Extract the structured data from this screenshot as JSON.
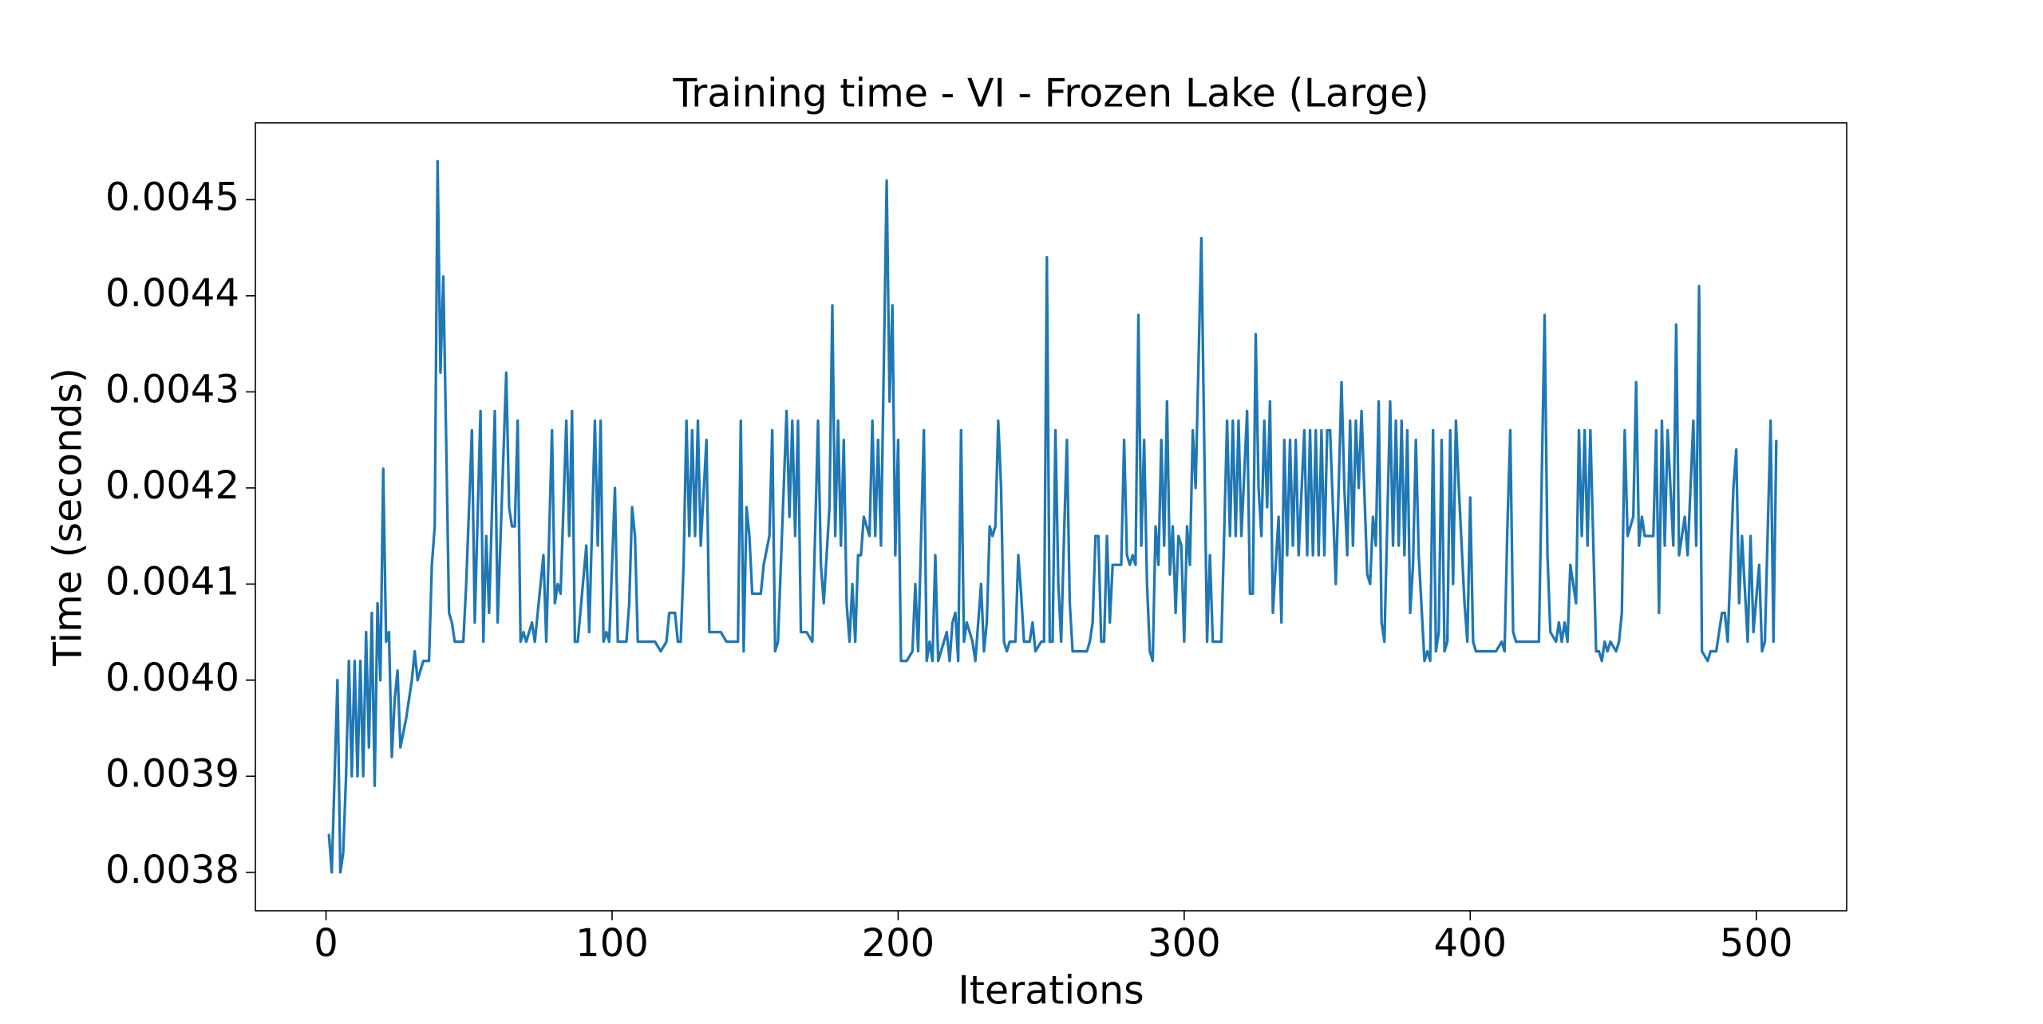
{
  "chart_data": {
    "type": "line",
    "title": "Training time - VI - Frozen Lake (Large)",
    "xlabel": "Iterations",
    "ylabel": "Time (seconds)",
    "color": "#1f77b4",
    "grid": false,
    "xlim": [
      -24.7,
      531.6
    ],
    "xticks": [
      0,
      100,
      200,
      300,
      400,
      500
    ],
    "ylim": [
      0.00376,
      0.00458
    ],
    "yticks": [
      0.0038,
      0.0039,
      {
        "value": 0.004,
        "label": "0.0040"
      },
      0.0041,
      0.0042,
      0.0043,
      0.0044,
      0.0045
    ],
    "x": [
      1,
      2,
      3,
      4,
      5,
      6,
      7,
      8,
      9,
      10,
      11,
      12,
      13,
      14,
      15,
      16,
      17,
      18,
      19,
      20,
      21,
      22,
      23,
      24,
      25,
      26,
      28,
      30,
      31,
      32,
      34,
      36,
      37,
      38,
      39,
      40,
      41,
      42,
      43,
      44,
      45,
      48,
      49,
      51,
      52,
      54,
      55,
      56,
      57,
      59,
      60,
      63,
      64,
      65,
      66,
      67,
      68,
      69,
      70,
      72,
      73,
      76,
      77,
      79,
      80,
      81,
      82,
      84,
      85,
      86,
      87,
      88,
      91,
      92,
      94,
      95,
      96,
      97,
      98,
      99,
      101,
      102,
      105,
      106,
      107,
      108,
      109,
      111,
      113,
      115,
      117,
      119,
      120,
      122,
      123,
      124,
      125,
      126,
      127,
      128,
      129,
      130,
      131,
      133,
      134,
      136,
      138,
      140,
      142,
      144,
      145,
      146,
      147,
      148,
      149,
      152,
      153,
      155,
      156,
      157,
      158,
      161,
      162,
      163,
      164,
      165,
      166,
      168,
      170,
      172,
      173,
      174,
      176,
      177,
      178,
      179,
      180,
      181,
      182,
      183,
      184,
      185,
      186,
      187,
      188,
      189,
      190,
      191,
      192,
      193,
      194,
      196,
      197,
      198,
      199,
      200,
      201,
      202,
      203,
      205,
      206,
      207,
      209,
      210,
      211,
      212,
      213,
      214,
      216,
      217,
      218,
      219,
      220,
      221,
      222,
      223,
      224,
      225,
      226,
      227,
      229,
      230,
      231,
      232,
      233,
      234,
      235,
      236,
      237,
      238,
      239,
      241,
      242,
      243,
      244,
      246,
      247,
      248,
      250,
      251,
      252,
      253,
      254,
      255,
      256,
      257,
      258,
      259,
      260,
      261,
      263,
      266,
      267,
      268,
      269,
      270,
      271,
      272,
      273,
      274,
      275,
      278,
      279,
      280,
      281,
      282,
      283,
      284,
      285,
      286,
      287,
      288,
      289,
      290,
      291,
      292,
      293,
      294,
      295,
      296,
      297,
      298,
      299,
      300,
      301,
      302,
      303,
      304,
      306,
      307,
      308,
      309,
      310,
      313,
      315,
      316,
      317,
      318,
      319,
      320,
      322,
      323,
      324,
      325,
      326,
      327,
      328,
      329,
      330,
      331,
      333,
      334,
      335,
      336,
      337,
      338,
      339,
      340,
      342,
      343,
      344,
      345,
      346,
      347,
      348,
      349,
      350,
      351,
      353,
      354,
      355,
      356,
      357,
      358,
      359,
      360,
      361,
      362,
      364,
      365,
      366,
      367,
      368,
      369,
      370,
      372,
      373,
      374,
      375,
      376,
      377,
      378,
      379,
      380,
      381,
      382,
      384,
      385,
      386,
      387,
      388,
      389,
      390,
      391,
      392,
      393,
      394,
      395,
      396,
      398,
      399,
      400,
      401,
      402,
      404,
      406,
      409,
      411,
      412,
      413,
      414,
      415,
      416,
      418,
      420,
      422,
      424,
      426,
      427,
      428,
      430,
      431,
      432,
      433,
      434,
      435,
      437,
      438,
      439,
      440,
      441,
      442,
      444,
      445,
      446,
      447,
      448,
      449,
      451,
      452,
      453,
      454,
      455,
      457,
      458,
      459,
      460,
      461,
      462,
      464,
      465,
      466,
      467,
      468,
      469,
      471,
      472,
      473,
      474,
      475,
      476,
      478,
      479,
      480,
      481,
      483,
      484,
      485,
      486,
      488,
      489,
      490,
      492,
      493,
      494,
      495,
      497,
      498,
      499,
      501,
      502,
      503,
      505,
      506,
      507
    ],
    "values": [
      0.00384,
      0.0038,
      0.0039,
      0.004,
      0.0038,
      0.00382,
      0.0039,
      0.00402,
      0.0039,
      0.00402,
      0.0039,
      0.00402,
      0.0039,
      0.00405,
      0.00393,
      0.00407,
      0.00389,
      0.00408,
      0.004,
      0.00422,
      0.00404,
      0.00405,
      0.00392,
      0.00398,
      0.00401,
      0.00393,
      0.00396,
      0.004,
      0.00403,
      0.004,
      0.00402,
      0.00402,
      0.00412,
      0.00416,
      0.00454,
      0.00432,
      0.00442,
      0.00425,
      0.00407,
      0.00406,
      0.00404,
      0.00404,
      0.0041,
      0.00426,
      0.00406,
      0.00428,
      0.00404,
      0.00415,
      0.00407,
      0.00428,
      0.00406,
      0.00432,
      0.00418,
      0.00416,
      0.00416,
      0.00427,
      0.00404,
      0.00405,
      0.00404,
      0.00406,
      0.00404,
      0.00413,
      0.00404,
      0.00426,
      0.00408,
      0.0041,
      0.00409,
      0.00427,
      0.00415,
      0.00428,
      0.00404,
      0.00404,
      0.00414,
      0.00405,
      0.00427,
      0.00414,
      0.00427,
      0.00404,
      0.00405,
      0.00404,
      0.0042,
      0.00404,
      0.00404,
      0.00408,
      0.00418,
      0.00415,
      0.00404,
      0.00404,
      0.00404,
      0.00404,
      0.00403,
      0.00404,
      0.00407,
      0.00407,
      0.00404,
      0.00404,
      0.00412,
      0.00427,
      0.00415,
      0.00426,
      0.00415,
      0.00427,
      0.00414,
      0.00425,
      0.00405,
      0.00405,
      0.00405,
      0.00404,
      0.00404,
      0.00404,
      0.00427,
      0.00403,
      0.00418,
      0.00415,
      0.00409,
      0.00409,
      0.00412,
      0.00415,
      0.00426,
      0.00403,
      0.00404,
      0.00428,
      0.00417,
      0.00427,
      0.00415,
      0.00427,
      0.00405,
      0.00405,
      0.00404,
      0.00427,
      0.00412,
      0.00408,
      0.00418,
      0.00439,
      0.00415,
      0.00427,
      0.00414,
      0.00425,
      0.00408,
      0.00404,
      0.0041,
      0.00404,
      0.00413,
      0.00413,
      0.00417,
      0.00416,
      0.00415,
      0.00427,
      0.00415,
      0.00425,
      0.00414,
      0.00452,
      0.00429,
      0.00439,
      0.00413,
      0.00425,
      0.00402,
      0.00402,
      0.00402,
      0.00403,
      0.0041,
      0.00403,
      0.00426,
      0.00402,
      0.00404,
      0.00402,
      0.00413,
      0.00402,
      0.00404,
      0.00405,
      0.00402,
      0.00406,
      0.00407,
      0.00402,
      0.00426,
      0.00404,
      0.00406,
      0.00405,
      0.00404,
      0.00402,
      0.0041,
      0.00403,
      0.00406,
      0.00416,
      0.00415,
      0.00416,
      0.00427,
      0.0042,
      0.00404,
      0.00403,
      0.00404,
      0.00404,
      0.00413,
      0.00409,
      0.00404,
      0.00404,
      0.00406,
      0.00403,
      0.00404,
      0.00404,
      0.00444,
      0.00404,
      0.00404,
      0.00426,
      0.0041,
      0.00404,
      0.00415,
      0.00425,
      0.00408,
      0.00403,
      0.00403,
      0.00403,
      0.00404,
      0.00406,
      0.00415,
      0.00415,
      0.00404,
      0.00404,
      0.00415,
      0.00406,
      0.00412,
      0.00412,
      0.00425,
      0.00413,
      0.00412,
      0.00413,
      0.00412,
      0.00438,
      0.00414,
      0.00425,
      0.0041,
      0.00403,
      0.00402,
      0.00416,
      0.00412,
      0.00425,
      0.00414,
      0.00429,
      0.00411,
      0.00416,
      0.00407,
      0.00415,
      0.00414,
      0.00404,
      0.00416,
      0.00412,
      0.00426,
      0.0042,
      0.00446,
      0.00425,
      0.00404,
      0.00413,
      0.00404,
      0.00404,
      0.00427,
      0.00415,
      0.00427,
      0.00415,
      0.00427,
      0.00415,
      0.00428,
      0.00409,
      0.00409,
      0.00436,
      0.0042,
      0.00415,
      0.00427,
      0.00418,
      0.00429,
      0.00407,
      0.00417,
      0.00406,
      0.00425,
      0.00413,
      0.00425,
      0.00414,
      0.00425,
      0.00413,
      0.00426,
      0.00413,
      0.00426,
      0.00413,
      0.00426,
      0.00413,
      0.00426,
      0.00413,
      0.00426,
      0.00426,
      0.0041,
      0.0042,
      0.00431,
      0.0042,
      0.00413,
      0.00427,
      0.00414,
      0.00427,
      0.0042,
      0.00428,
      0.00411,
      0.0041,
      0.00417,
      0.00414,
      0.00429,
      0.00406,
      0.00404,
      0.00429,
      0.00414,
      0.00427,
      0.00414,
      0.00427,
      0.00413,
      0.00426,
      0.00407,
      0.00412,
      0.00425,
      0.00413,
      0.00402,
      0.00403,
      0.00402,
      0.00426,
      0.00403,
      0.00405,
      0.00425,
      0.00403,
      0.00404,
      0.00426,
      0.0041,
      0.00427,
      0.0042,
      0.00408,
      0.00404,
      0.00419,
      0.00404,
      0.00403,
      0.00403,
      0.00403,
      0.00403,
      0.00404,
      0.00403,
      0.00416,
      0.00426,
      0.00405,
      0.00404,
      0.00404,
      0.00404,
      0.00404,
      0.00404,
      0.00438,
      0.00413,
      0.00405,
      0.00404,
      0.00406,
      0.00404,
      0.00406,
      0.00404,
      0.00412,
      0.00408,
      0.00426,
      0.00415,
      0.00426,
      0.00414,
      0.00426,
      0.00403,
      0.00403,
      0.00402,
      0.00404,
      0.00403,
      0.00404,
      0.00403,
      0.00404,
      0.00407,
      0.00426,
      0.00415,
      0.00417,
      0.00431,
      0.00414,
      0.00417,
      0.00415,
      0.00415,
      0.00415,
      0.00426,
      0.00407,
      0.00427,
      0.00414,
      0.00426,
      0.00414,
      0.00437,
      0.00413,
      0.00415,
      0.00417,
      0.00413,
      0.00427,
      0.00414,
      0.00441,
      0.00403,
      0.00402,
      0.00403,
      0.00403,
      0.00403,
      0.00407,
      0.00407,
      0.00404,
      0.0042,
      0.00424,
      0.00408,
      0.00415,
      0.00404,
      0.00415,
      0.00405,
      0.00412,
      0.00403,
      0.00404,
      0.00427,
      0.00404,
      0.00425
    ]
  }
}
